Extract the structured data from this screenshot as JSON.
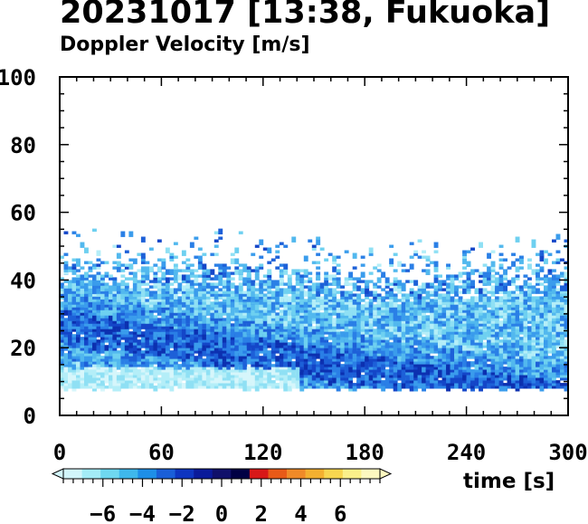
{
  "title": "20231017 [13:38, Fukuoka]",
  "subtitle": "Doppler Velocity [m/s]",
  "chart_data": {
    "type": "heatmap",
    "xlabel": "time [s]",
    "ylabel": "",
    "xlim": [
      0,
      300
    ],
    "ylim": [
      0,
      100
    ],
    "x_ticks": [
      0,
      60,
      120,
      180,
      240,
      300
    ],
    "y_ticks": [
      0,
      20,
      40,
      60,
      80,
      100
    ],
    "valid_range": {
      "y_min": 8
    },
    "echo_top_approx": [
      {
        "time": 0,
        "height": 45
      },
      {
        "time": 60,
        "height": 45
      },
      {
        "time": 120,
        "height": 44
      },
      {
        "time": 180,
        "height": 40
      },
      {
        "time": 240,
        "height": 42
      },
      {
        "time": 300,
        "height": 43
      }
    ],
    "colorbar": {
      "min": -8,
      "max": 8,
      "ticks": [
        -6,
        -4,
        -2,
        0,
        2,
        4,
        6
      ],
      "colors": [
        "#d2f6fb",
        "#a4ecf7",
        "#6fd8f0",
        "#3fb8ec",
        "#1e8fe8",
        "#1a5fd8",
        "#0e35c0",
        "#0a1a9a",
        "#10106a",
        "#000044",
        "#d81818",
        "#e85a18",
        "#f08a28",
        "#f4b030",
        "#f8d650",
        "#fbf08a",
        "#fdf8c0"
      ]
    }
  }
}
